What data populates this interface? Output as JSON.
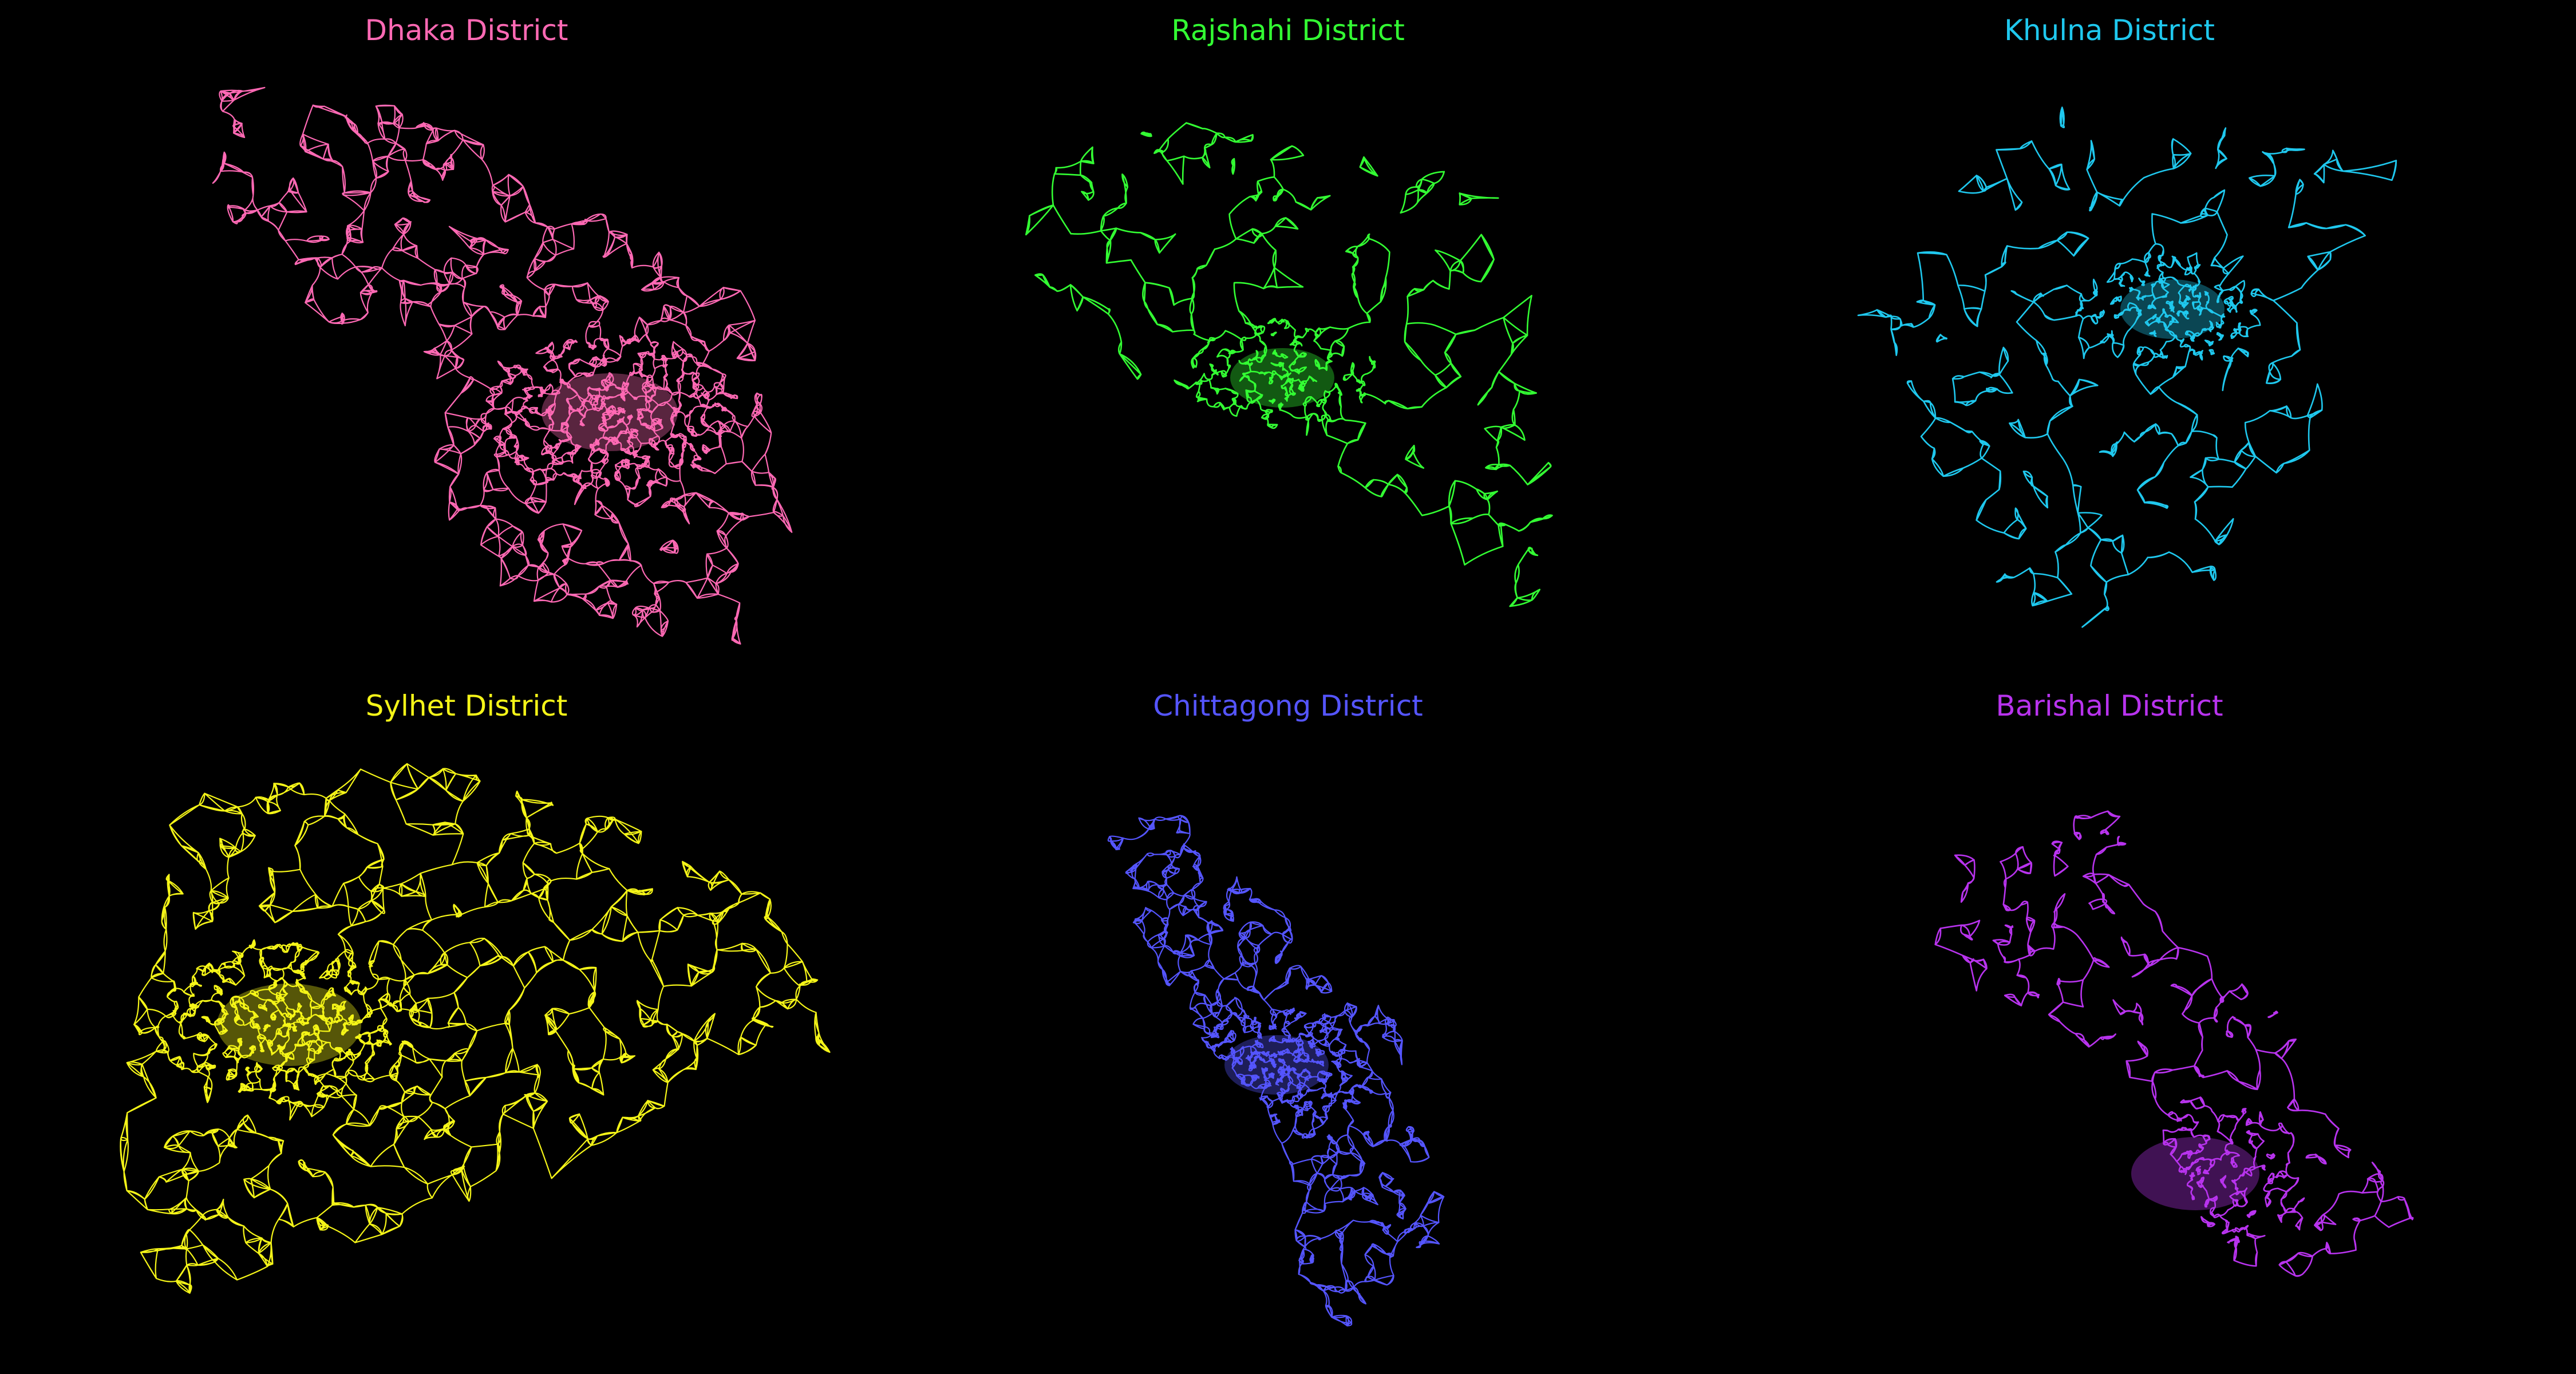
{
  "background_color": "#000000",
  "districts": [
    {
      "key": "dhaka",
      "title": "Dhaka District",
      "color": "#ff69b4",
      "density": 1.0,
      "seed": 11
    },
    {
      "key": "rajshahi",
      "title": "Rajshahi District",
      "color": "#33ff33",
      "density": 0.35,
      "seed": 23
    },
    {
      "key": "khulna",
      "title": "Khulna District",
      "color": "#1fc8ee",
      "density": 0.45,
      "seed": 37
    },
    {
      "key": "sylhet",
      "title": "Sylhet District",
      "color": "#f5f518",
      "density": 1.0,
      "seed": 41
    },
    {
      "key": "chittagong",
      "title": "Chittagong District",
      "color": "#5555ff",
      "density": 0.8,
      "seed": 53
    },
    {
      "key": "barishal",
      "title": "Barishal District",
      "color": "#b833ee",
      "density": 0.4,
      "seed": 67
    }
  ]
}
